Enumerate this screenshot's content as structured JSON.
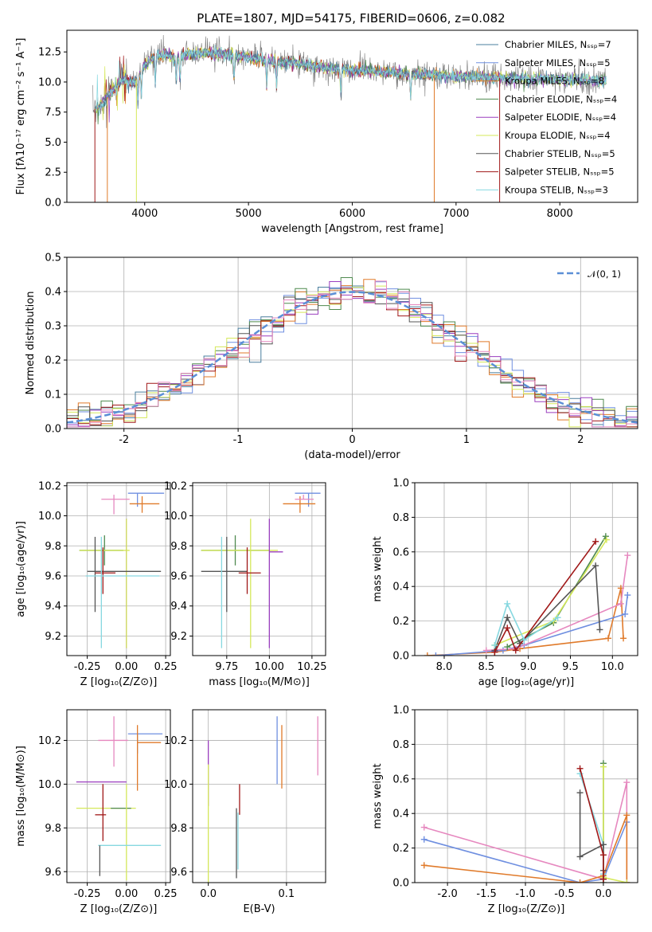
{
  "figure_title": "PLATE=1807, MJD=54175, FIBERID=0606, z=0.082",
  "palette": {
    "chabrier_miles": "#4a7f9e",
    "salpeter_miles": "#6f8fe0",
    "kroupa_miles": "#e07a2a",
    "chabrier_elodie": "#4f8a4f",
    "salpeter_elodie": "#9b3fbf",
    "kroupa_elodie": "#d5e85a",
    "chabrier_stelib": "#555555",
    "salpeter_stelib": "#a01818",
    "kroupa_stelib": "#86d8e0",
    "extra_pink": "#e688bf",
    "gaussian": "#5b8fd6",
    "data_gray": "#7a7a7a"
  },
  "chart_data": [
    {
      "id": "spectrum",
      "type": "line",
      "xlabel": "wavelength [Angstrom, rest frame]",
      "ylabel": "Flux [fλ10⁻¹⁷ erg cm⁻² s⁻¹ A⁻¹]",
      "xlim": [
        3250,
        8750
      ],
      "ylim": [
        0,
        14.3
      ],
      "xticks": [
        4000,
        5000,
        6000,
        7000,
        8000
      ],
      "yticks": [
        0.0,
        2.5,
        5.0,
        7.5,
        10.0,
        12.5
      ],
      "legend_position": "top-right",
      "legend": [
        {
          "label": "Chabrier MILES, Nₛₛₚ=7",
          "color_key": "chabrier_miles"
        },
        {
          "label": "Salpeter MILES, Nₛₛₚ=5",
          "color_key": "salpeter_miles"
        },
        {
          "label": "Kroupa MILES, Nₛₛₚ=8",
          "color_key": "kroupa_miles"
        },
        {
          "label": "Chabrier ELODIE, Nₛₛₚ=4",
          "color_key": "chabrier_elodie"
        },
        {
          "label": "Salpeter ELODIE, Nₛₛₚ=4",
          "color_key": "salpeter_elodie"
        },
        {
          "label": "Kroupa ELODIE, Nₛₛₚ=4",
          "color_key": "kroupa_elodie"
        },
        {
          "label": "Chabrier STELIB, Nₛₛₚ=5",
          "color_key": "chabrier_stelib"
        },
        {
          "label": "Salpeter STELIB, Nₛₛₚ=5",
          "color_key": "salpeter_stelib"
        },
        {
          "label": "Kroupa STELIB, Nₛₛₚ=3",
          "color_key": "kroupa_stelib"
        }
      ],
      "continuum": {
        "x": [
          3500,
          3600,
          3700,
          3800,
          3900,
          4000,
          4100,
          4200,
          4300,
          4400,
          4600,
          4800,
          5000,
          5200,
          5500,
          5800,
          6000,
          6200,
          6500,
          7000,
          7500,
          8000,
          8500
        ],
        "y": [
          7.6,
          8.3,
          9.4,
          10.2,
          9.9,
          11.4,
          12.1,
          12.3,
          12.0,
          12.3,
          12.4,
          12.3,
          12.0,
          11.8,
          11.5,
          11.1,
          11.0,
          10.9,
          10.7,
          10.5,
          10.3,
          10.2,
          10.1
        ]
      }
    },
    {
      "id": "residuals",
      "type": "histogram",
      "xlabel": "(data-model)/error",
      "ylabel": "Normed distribution",
      "xlim": [
        -2.5,
        2.5
      ],
      "ylim": [
        0,
        0.5
      ],
      "xticks": [
        -2,
        -1,
        0,
        1,
        2
      ],
      "yticks": [
        0.0,
        0.1,
        0.2,
        0.3,
        0.4,
        0.5
      ],
      "legend_position": "top-right",
      "legend": [
        {
          "label": "𝒩(0, 1)",
          "color_key": "gaussian"
        }
      ],
      "bin_width": 0.1,
      "series_colors": [
        "chabrier_miles",
        "salpeter_miles",
        "kroupa_miles",
        "chabrier_elodie",
        "salpeter_elodie",
        "kroupa_elodie",
        "chabrier_stelib",
        "salpeter_stelib",
        "extra_pink"
      ]
    },
    {
      "id": "age_vs_Z",
      "type": "scatter",
      "xlabel": "Z [log₁₀(Z/Z⊙)]",
      "ylabel": "age  [log₁₀(age/yr)]",
      "xlim": [
        -0.38,
        0.28
      ],
      "ylim": [
        9.07,
        10.22
      ],
      "xticks": [
        -0.25,
        0.0,
        0.25
      ],
      "yticks": [
        9.2,
        9.4,
        9.6,
        9.8,
        10.0,
        10.2
      ],
      "points": [
        {
          "x": 0.07,
          "y": 10.15,
          "xerr": [
            0.06,
            0.17
          ],
          "yerr": [
            0.09,
            0.0
          ],
          "color_key": "salpeter_miles"
        },
        {
          "x": 0.1,
          "y": 10.08,
          "xerr": [
            0.08,
            0.11
          ],
          "yerr": [
            0.06,
            0.05
          ],
          "color_key": "kroupa_miles"
        },
        {
          "x": -0.08,
          "y": 10.11,
          "xerr": [
            0.08,
            0.1
          ],
          "yerr": [
            0.1,
            0.03
          ],
          "color_key": "extra_pink"
        },
        {
          "x": -0.14,
          "y": 9.77,
          "xerr": [
            0.16,
            0.12
          ],
          "yerr": [
            0.1,
            0.1
          ],
          "color_key": "chabrier_elodie"
        },
        {
          "x": -0.1,
          "y": 9.77,
          "xerr": [
            0.2,
            0.12
          ],
          "yerr": [
            0.0,
            0.0
          ],
          "color_key": "kroupa_elodie"
        },
        {
          "x": 0.0,
          "y": 9.76,
          "xerr": [
            0.0,
            0.0
          ],
          "yerr": [
            0.64,
            0.22
          ],
          "color_key": "salpeter_elodie"
        },
        {
          "x": 0.0,
          "y": 9.76,
          "xerr": [
            0.0,
            0.0
          ],
          "yerr": [
            0.64,
            0.22
          ],
          "color_key": "kroupa_elodie"
        },
        {
          "x": -0.2,
          "y": 9.63,
          "xerr": [
            0.05,
            0.42
          ],
          "yerr": [
            0.27,
            0.23
          ],
          "color_key": "chabrier_stelib"
        },
        {
          "x": -0.15,
          "y": 9.62,
          "xerr": [
            0.05,
            0.08
          ],
          "yerr": [
            0.14,
            0.17
          ],
          "color_key": "salpeter_stelib"
        },
        {
          "x": -0.16,
          "y": 9.6,
          "xerr": [
            0.1,
            0.37
          ],
          "yerr": [
            0.48,
            0.26
          ],
          "color_key": "kroupa_stelib"
        }
      ]
    },
    {
      "id": "age_vs_mass",
      "type": "scatter",
      "xlabel": "mass [log₁₀(M/M⊙)]",
      "ylabel": "",
      "xlim": [
        9.55,
        10.33
      ],
      "ylim": [
        9.07,
        10.22
      ],
      "xticks": [
        9.75,
        10.0,
        10.25
      ],
      "tick_labels": [
        "9.75",
        "10.00",
        "10.25"
      ],
      "yticks": [
        9.2,
        9.4,
        9.6,
        9.8,
        10.0,
        10.2
      ],
      "points": [
        {
          "x": 10.23,
          "y": 10.15,
          "xerr": [
            0.08,
            0.07
          ],
          "yerr": [
            0.09,
            0.0
          ],
          "color_key": "salpeter_miles"
        },
        {
          "x": 10.18,
          "y": 10.08,
          "xerr": [
            0.1,
            0.09
          ],
          "yerr": [
            0.06,
            0.05
          ],
          "color_key": "kroupa_miles"
        },
        {
          "x": 10.2,
          "y": 10.11,
          "xerr": [
            0.05,
            0.06
          ],
          "yerr": [
            0.0,
            0.03
          ],
          "color_key": "extra_pink"
        },
        {
          "x": 9.8,
          "y": 9.77,
          "xerr": [
            0.2,
            0.2
          ],
          "yerr": [
            0.1,
            0.1
          ],
          "color_key": "chabrier_elodie"
        },
        {
          "x": 9.85,
          "y": 9.77,
          "xerr": [
            0.25,
            0.2
          ],
          "yerr": [
            0.0,
            0.0
          ],
          "color_key": "kroupa_elodie"
        },
        {
          "x": 10.0,
          "y": 9.76,
          "xerr": [
            0.0,
            0.08
          ],
          "yerr": [
            0.64,
            0.22
          ],
          "color_key": "salpeter_elodie"
        },
        {
          "x": 9.89,
          "y": 9.76,
          "xerr": [
            0.0,
            0.0
          ],
          "yerr": [
            0.64,
            0.22
          ],
          "color_key": "kroupa_elodie"
        },
        {
          "x": 9.75,
          "y": 9.63,
          "xerr": [
            0.15,
            0.12
          ],
          "yerr": [
            0.27,
            0.23
          ],
          "color_key": "chabrier_stelib"
        },
        {
          "x": 9.87,
          "y": 9.62,
          "xerr": [
            0.05,
            0.08
          ],
          "yerr": [
            0.14,
            0.17
          ],
          "color_key": "salpeter_stelib"
        },
        {
          "x": 9.72,
          "y": 9.6,
          "xerr": [
            0.0,
            0.0
          ],
          "yerr": [
            0.48,
            0.26
          ],
          "color_key": "kroupa_stelib"
        }
      ]
    },
    {
      "id": "weight_vs_age",
      "type": "line",
      "xlabel": "age  [log₁₀(age/yr)]",
      "ylabel": "mass weight",
      "xlim": [
        7.65,
        10.3
      ],
      "ylim": [
        0,
        1.0
      ],
      "xticks": [
        8.0,
        8.5,
        9.0,
        9.5,
        10.0
      ],
      "yticks": [
        0.0,
        0.2,
        0.4,
        0.6,
        0.8,
        1.0
      ],
      "series": [
        {
          "color_key": "kroupa_miles",
          "x": [
            7.8,
            8.6,
            8.9,
            9.95,
            10.1,
            10.13
          ],
          "y": [
            0.0,
            0.02,
            0.04,
            0.1,
            0.39,
            0.1
          ]
        },
        {
          "color_key": "salpeter_miles",
          "x": [
            7.9,
            8.7,
            8.95,
            10.15,
            10.18
          ],
          "y": [
            0.0,
            0.03,
            0.06,
            0.24,
            0.35
          ]
        },
        {
          "color_key": "extra_pink",
          "x": [
            8.5,
            8.85,
            10.1,
            10.18
          ],
          "y": [
            0.03,
            0.04,
            0.3,
            0.58
          ]
        },
        {
          "color_key": "chabrier_elodie",
          "x": [
            8.75,
            9.3,
            9.92
          ],
          "y": [
            0.05,
            0.19,
            0.69
          ]
        },
        {
          "color_key": "kroupa_elodie",
          "x": [
            8.6,
            9.3,
            9.93
          ],
          "y": [
            0.06,
            0.2,
            0.67
          ]
        },
        {
          "color_key": "chabrier_stelib",
          "x": [
            8.6,
            8.75,
            8.9,
            9.8,
            9.85
          ],
          "y": [
            0.03,
            0.22,
            0.07,
            0.52,
            0.15
          ]
        },
        {
          "color_key": "salpeter_stelib",
          "x": [
            8.6,
            8.75,
            8.85,
            9.8
          ],
          "y": [
            0.02,
            0.16,
            0.03,
            0.66
          ]
        },
        {
          "color_key": "kroupa_stelib",
          "x": [
            8.6,
            8.75,
            8.95,
            9.35
          ],
          "y": [
            0.06,
            0.3,
            0.09,
            0.22
          ]
        }
      ]
    },
    {
      "id": "mass_vs_Z",
      "type": "scatter",
      "xlabel": "Z [log₁₀(Z/Z⊙)]",
      "ylabel": "mass [log₁₀(M/M⊙)]",
      "xlim": [
        -0.38,
        0.28
      ],
      "ylim": [
        9.55,
        10.34
      ],
      "xticks": [
        -0.25,
        0.0,
        0.25
      ],
      "yticks": [
        9.6,
        9.8,
        10.0,
        10.2
      ],
      "points": [
        {
          "x": 0.07,
          "y": 10.23,
          "xerr": [
            0.06,
            0.16
          ],
          "yerr": [
            0.09,
            0.0
          ],
          "color_key": "salpeter_miles"
        },
        {
          "x": 0.07,
          "y": 10.19,
          "xerr": [
            0.0,
            0.15
          ],
          "yerr": [
            0.22,
            0.08
          ],
          "color_key": "kroupa_miles"
        },
        {
          "x": -0.08,
          "y": 10.2,
          "xerr": [
            0.1,
            0.09
          ],
          "yerr": [
            0.12,
            0.11
          ],
          "color_key": "extra_pink"
        },
        {
          "x": -0.16,
          "y": 10.01,
          "xerr": [
            0.16,
            0.16
          ],
          "yerr": [
            0.0,
            0.0
          ],
          "color_key": "salpeter_elodie"
        },
        {
          "x": -0.1,
          "y": 9.89,
          "xerr": [
            0.22,
            0.16
          ],
          "yerr": [
            0.0,
            0.0
          ],
          "color_key": "kroupa_elodie"
        },
        {
          "x": -0.1,
          "y": 9.89,
          "xerr": [
            0.0,
            0.13
          ],
          "yerr": [
            0.0,
            0.0
          ],
          "color_key": "chabrier_elodie"
        },
        {
          "x": 0.0,
          "y": 9.89,
          "xerr": [
            0.0,
            0.0
          ],
          "yerr": [
            0.33,
            0.11
          ],
          "color_key": "kroupa_elodie"
        },
        {
          "x": -0.15,
          "y": 9.86,
          "xerr": [
            0.05,
            0.02
          ],
          "yerr": [
            0.12,
            0.14
          ],
          "color_key": "salpeter_stelib"
        },
        {
          "x": -0.04,
          "y": 9.72,
          "xerr": [
            0.14,
            0.26
          ],
          "yerr": [
            0.0,
            0.0
          ],
          "color_key": "kroupa_stelib"
        },
        {
          "x": -0.17,
          "y": 9.72,
          "xerr": [
            0.0,
            0.0
          ],
          "yerr": [
            0.14,
            0.0
          ],
          "color_key": "chabrier_stelib"
        }
      ]
    },
    {
      "id": "mass_vs_ebv",
      "type": "scatter",
      "xlabel": "E(B-V)",
      "ylabel": "",
      "xlim": [
        -0.02,
        0.15
      ],
      "ylim": [
        9.55,
        10.34
      ],
      "xticks": [
        0.0,
        0.1
      ],
      "yticks": [
        9.6,
        9.8,
        10.0,
        10.2
      ],
      "points": [
        {
          "x": 0.088,
          "y": 10.2,
          "xerr": [
            0.0,
            0.0
          ],
          "yerr": [
            0.2,
            0.11
          ],
          "color_key": "salpeter_miles"
        },
        {
          "x": 0.094,
          "y": 10.2,
          "xerr": [
            0.0,
            0.0
          ],
          "yerr": [
            0.22,
            0.07
          ],
          "color_key": "kroupa_miles"
        },
        {
          "x": 0.14,
          "y": 10.2,
          "xerr": [
            0.0,
            0.0
          ],
          "yerr": [
            0.16,
            0.11
          ],
          "color_key": "extra_pink"
        },
        {
          "x": 0.0,
          "y": 10.1,
          "xerr": [
            0.0,
            0.0
          ],
          "yerr": [
            0.2,
            0.1
          ],
          "color_key": "salpeter_elodie"
        },
        {
          "x": 0.0,
          "y": 9.82,
          "xerr": [
            0.0,
            0.0
          ],
          "yerr": [
            0.27,
            0.27
          ],
          "color_key": "kroupa_elodie"
        },
        {
          "x": 0.04,
          "y": 9.9,
          "xerr": [
            0.0,
            0.0
          ],
          "yerr": [
            0.04,
            0.1
          ],
          "color_key": "salpeter_stelib"
        },
        {
          "x": 0.036,
          "y": 9.73,
          "xerr": [
            0.0,
            0.0
          ],
          "yerr": [
            0.16,
            0.16
          ],
          "color_key": "chabrier_stelib"
        },
        {
          "x": 0.038,
          "y": 9.75,
          "xerr": [
            0.0,
            0.0
          ],
          "yerr": [
            0.14,
            0.12
          ],
          "color_key": "kroupa_stelib"
        }
      ]
    },
    {
      "id": "weight_vs_Z",
      "type": "line",
      "xlabel": "Z [log₁₀(Z/Z⊙)]",
      "ylabel": "mass weight",
      "xlim": [
        -2.42,
        0.44
      ],
      "ylim": [
        0,
        1.0
      ],
      "xticks": [
        -2.0,
        -1.5,
        -1.0,
        -0.5,
        0.0
      ],
      "yticks": [
        0.0,
        0.2,
        0.4,
        0.6,
        0.8,
        1.0
      ],
      "series": [
        {
          "color_key": "salpeter_miles",
          "x": [
            -2.3,
            -0.3,
            0.0,
            0.3
          ],
          "y": [
            0.25,
            0.0,
            0.02,
            0.35
          ]
        },
        {
          "color_key": "extra_pink",
          "x": [
            -2.3,
            0.0,
            0.3,
            0.3
          ],
          "y": [
            0.32,
            0.02,
            0.58,
            0.0
          ]
        },
        {
          "color_key": "kroupa_miles",
          "x": [
            -2.3,
            -0.3,
            0.0,
            0.3,
            0.3
          ],
          "y": [
            0.1,
            0.0,
            0.04,
            0.39,
            0.0
          ]
        },
        {
          "color_key": "chabrier_elodie",
          "x": [
            0.0,
            0.0
          ],
          "y": [
            0.69,
            0.0
          ]
        },
        {
          "color_key": "kroupa_elodie",
          "x": [
            0.0,
            0.0,
            0.3
          ],
          "y": [
            0.67,
            0.03,
            0.0
          ]
        },
        {
          "color_key": "kroupa_stelib",
          "x": [
            -0.3,
            0.0,
            0.0
          ],
          "y": [
            0.63,
            0.22,
            0.05
          ]
        },
        {
          "color_key": "chabrier_stelib",
          "x": [
            -0.3,
            -0.3,
            0.0,
            0.0,
            0.0
          ],
          "y": [
            0.52,
            0.15,
            0.22,
            0.07,
            0.02
          ]
        },
        {
          "color_key": "salpeter_stelib",
          "x": [
            -0.3,
            0.0,
            0.0
          ],
          "y": [
            0.66,
            0.16,
            0.02
          ]
        }
      ]
    }
  ]
}
